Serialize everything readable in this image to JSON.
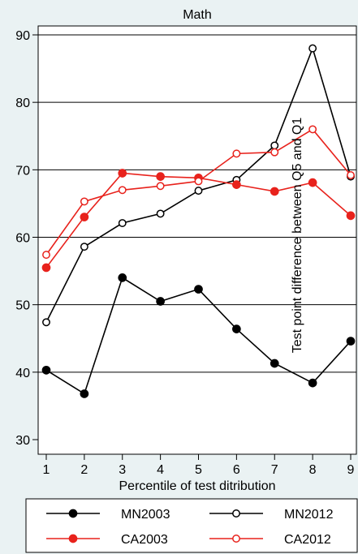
{
  "chart_data": {
    "type": "line",
    "title": "Math",
    "xlabel": "Percentile of test ditribution",
    "ylabel": "Test point difference between Q5 and Q1",
    "x": [
      1,
      2,
      3,
      4,
      5,
      6,
      7,
      8,
      9
    ],
    "xlim": [
      1,
      9
    ],
    "ylim": [
      30,
      90
    ],
    "yticks": [
      30,
      40,
      50,
      60,
      70,
      80,
      90
    ],
    "grid": true,
    "legend_position": "bottom",
    "series": [
      {
        "name": "MN2003",
        "color": "#000000",
        "marker": "filled",
        "values": [
          40.3,
          36.8,
          54.0,
          50.5,
          52.3,
          46.4,
          41.3,
          38.4,
          44.6
        ]
      },
      {
        "name": "MN2012",
        "color": "#000000",
        "marker": "hollow",
        "values": [
          47.4,
          58.6,
          62.1,
          63.5,
          66.9,
          68.5,
          73.6,
          88.0,
          69.0
        ]
      },
      {
        "name": "CA2003",
        "color": "#e8221c",
        "marker": "filled",
        "values": [
          55.5,
          63.0,
          69.5,
          69.0,
          68.8,
          67.8,
          66.8,
          68.1,
          63.2
        ]
      },
      {
        "name": "CA2012",
        "color": "#e8221c",
        "marker": "hollow",
        "values": [
          57.4,
          65.3,
          67.0,
          67.6,
          68.3,
          72.4,
          72.6,
          76.0,
          69.2
        ]
      }
    ]
  }
}
